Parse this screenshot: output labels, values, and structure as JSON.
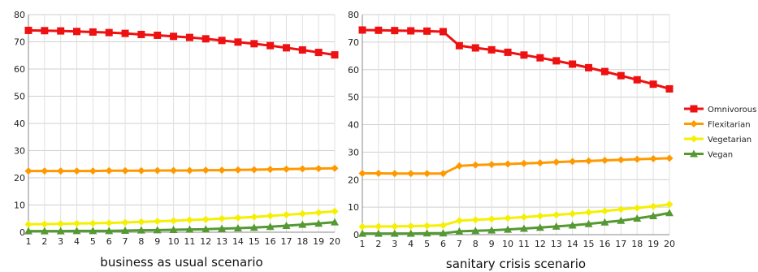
{
  "chart_data": [
    {
      "type": "line",
      "title": "business as usual scenario",
      "categories": [
        "1",
        "2",
        "3",
        "4",
        "5",
        "6",
        "7",
        "8",
        "9",
        "10",
        "11",
        "12",
        "13",
        "14",
        "15",
        "16",
        "17",
        "18",
        "19",
        "20"
      ],
      "ylim": [
        0,
        80
      ],
      "yticks": [
        0,
        10,
        20,
        30,
        40,
        50,
        60,
        70,
        80
      ],
      "grid": true,
      "series": [
        {
          "name": "Omnivorous",
          "color": "#ee1111",
          "marker": "square",
          "values": [
            74.2,
            74.1,
            74.0,
            73.8,
            73.6,
            73.4,
            73.1,
            72.7,
            72.4,
            72.0,
            71.6,
            71.1,
            70.5,
            69.9,
            69.3,
            68.6,
            67.8,
            67.0,
            66.1,
            65.2
          ]
        },
        {
          "name": "Flexitarian",
          "color": "#ff9900",
          "marker": "diamond",
          "values": [
            22.5,
            22.5,
            22.5,
            22.5,
            22.5,
            22.6,
            22.6,
            22.6,
            22.7,
            22.7,
            22.7,
            22.8,
            22.8,
            22.9,
            23.0,
            23.1,
            23.2,
            23.3,
            23.4,
            23.5
          ]
        },
        {
          "name": "Vegetarian",
          "color": "#f5f000",
          "marker": "diamond",
          "values": [
            2.9,
            3.0,
            3.1,
            3.2,
            3.3,
            3.4,
            3.6,
            3.8,
            4.0,
            4.2,
            4.5,
            4.7,
            5.0,
            5.3,
            5.6,
            6.0,
            6.4,
            6.8,
            7.2,
            7.7
          ]
        },
        {
          "name": "Vegan",
          "color": "#559933",
          "marker": "triangle",
          "values": [
            0.4,
            0.4,
            0.4,
            0.5,
            0.5,
            0.5,
            0.6,
            0.7,
            0.8,
            0.9,
            1.0,
            1.1,
            1.3,
            1.5,
            1.7,
            2.0,
            2.4,
            2.8,
            3.2,
            3.7
          ]
        }
      ]
    },
    {
      "type": "line",
      "title": "sanitary crisis scenario",
      "categories": [
        "1",
        "2",
        "3",
        "4",
        "5",
        "6",
        "7",
        "8",
        "9",
        "10",
        "11",
        "12",
        "13",
        "14",
        "15",
        "16",
        "17",
        "18",
        "19",
        "20"
      ],
      "ylim": [
        0,
        80
      ],
      "yticks": [
        0,
        10,
        20,
        30,
        40,
        50,
        60,
        70,
        80
      ],
      "grid": true,
      "series": [
        {
          "name": "Omnivorous",
          "color": "#ee1111",
          "marker": "square",
          "values": [
            74.4,
            74.3,
            74.2,
            74.1,
            74.0,
            73.8,
            68.7,
            67.9,
            67.2,
            66.3,
            65.3,
            64.3,
            63.2,
            62.0,
            60.7,
            59.3,
            57.8,
            56.3,
            54.7,
            53.0
          ]
        },
        {
          "name": "Flexitarian",
          "color": "#ff9900",
          "marker": "diamond",
          "values": [
            22.3,
            22.3,
            22.2,
            22.2,
            22.2,
            22.2,
            25.0,
            25.3,
            25.5,
            25.7,
            25.9,
            26.1,
            26.4,
            26.6,
            26.8,
            27.0,
            27.2,
            27.4,
            27.6,
            27.8
          ]
        },
        {
          "name": "Vegetarian",
          "color": "#f5f000",
          "marker": "diamond",
          "values": [
            2.9,
            3.0,
            3.0,
            3.1,
            3.2,
            3.4,
            5.1,
            5.4,
            5.7,
            6.0,
            6.4,
            6.8,
            7.2,
            7.6,
            8.1,
            8.6,
            9.2,
            9.7,
            10.3,
            11.0
          ]
        },
        {
          "name": "Vegan",
          "color": "#559933",
          "marker": "triangle",
          "values": [
            0.4,
            0.4,
            0.4,
            0.4,
            0.5,
            0.5,
            1.2,
            1.4,
            1.6,
            1.9,
            2.2,
            2.6,
            3.0,
            3.4,
            3.9,
            4.5,
            5.1,
            5.9,
            6.8,
            7.9
          ]
        }
      ]
    }
  ],
  "legend": {
    "placement": "right",
    "items": [
      {
        "name": "Omnivorous",
        "color": "#ee1111",
        "marker": "square"
      },
      {
        "name": "Flexitarian",
        "color": "#ff9900",
        "marker": "diamond"
      },
      {
        "name": "Vegetarian",
        "color": "#f5f000",
        "marker": "diamond"
      },
      {
        "name": "Vegan",
        "color": "#559933",
        "marker": "triangle"
      }
    ]
  }
}
